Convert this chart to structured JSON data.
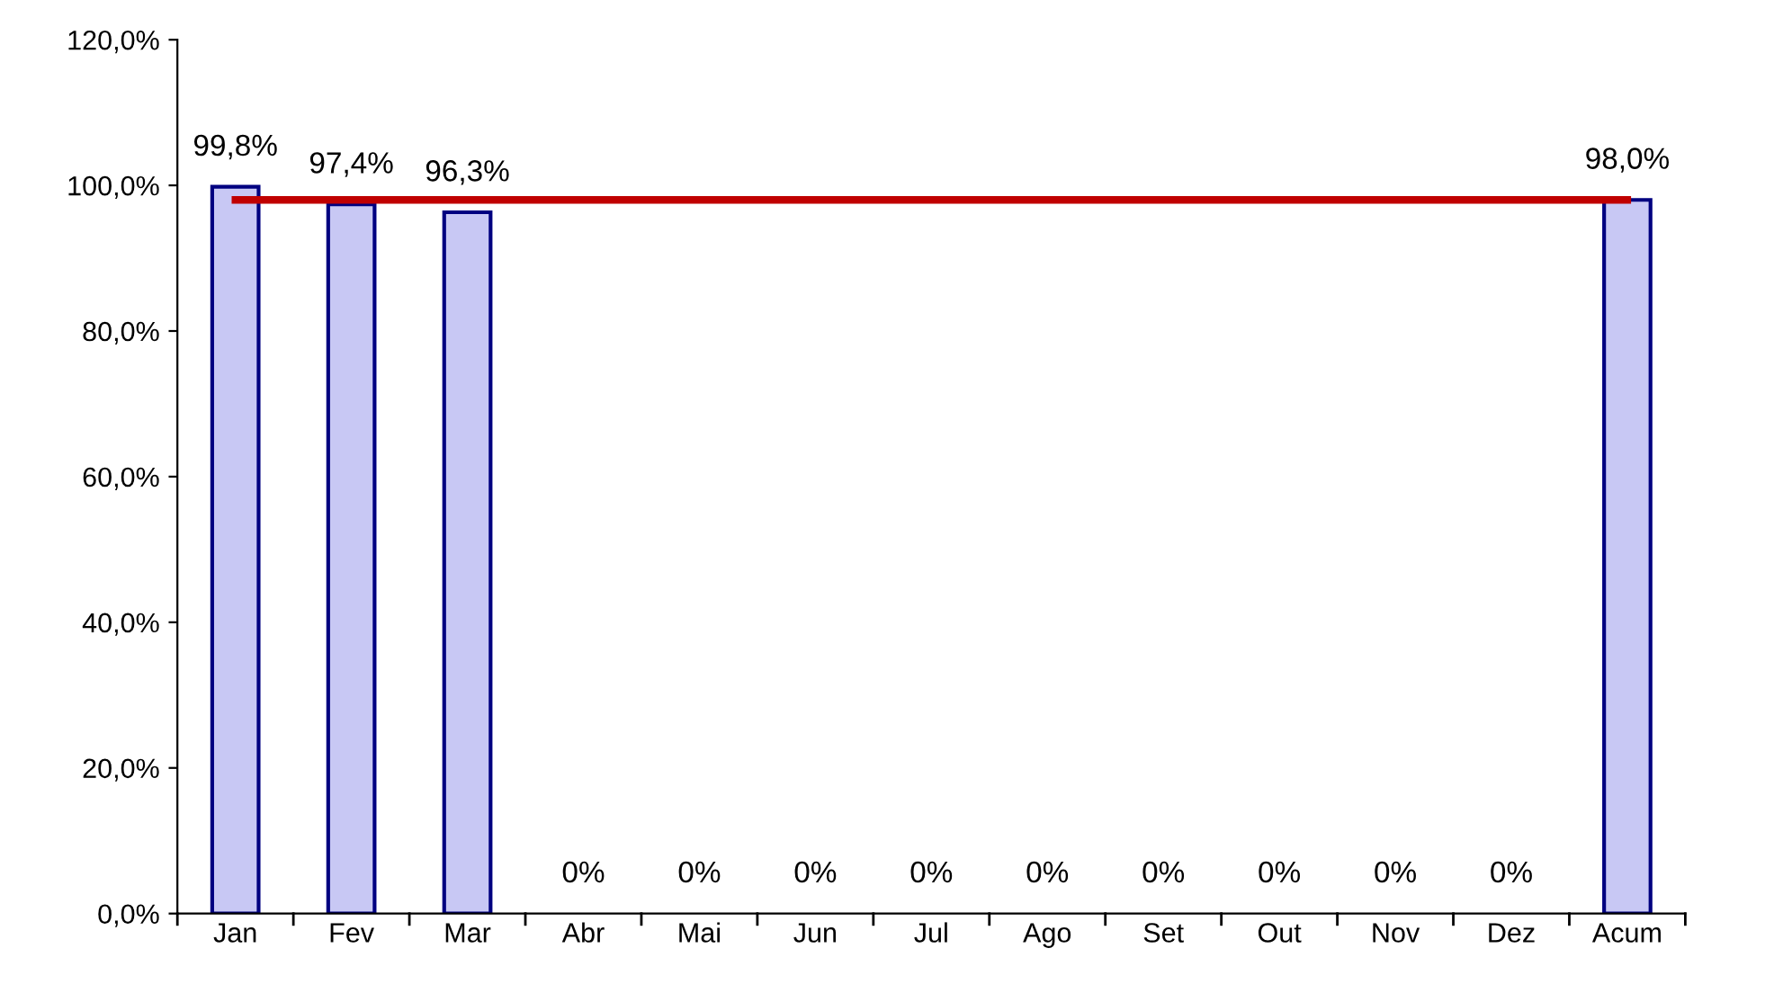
{
  "chart_data": {
    "type": "bar",
    "categories": [
      "Jan",
      "Fev",
      "Mar",
      "Abr",
      "Mai",
      "Jun",
      "Jul",
      "Ago",
      "Set",
      "Out",
      "Nov",
      "Dez",
      "Acum"
    ],
    "values": [
      99.8,
      97.4,
      96.3,
      0,
      0,
      0,
      0,
      0,
      0,
      0,
      0,
      0,
      98.0
    ],
    "value_labels": [
      "99,8%",
      "97,4%",
      "96,3%",
      "0%",
      "0%",
      "0%",
      "0%",
      "0%",
      "0%",
      "0%",
      "0%",
      "0%",
      "98,0%"
    ],
    "color": "#c8c8f4",
    "ylim": [
      0,
      120
    ],
    "yticks": [
      {
        "value": 0,
        "label": "0,0%"
      },
      {
        "value": 20,
        "label": "20,0%"
      },
      {
        "value": 40,
        "label": "40,0%"
      },
      {
        "value": 60,
        "label": "60,0%"
      },
      {
        "value": 80,
        "label": "80,0%"
      },
      {
        "value": 100,
        "label": "100,0%"
      },
      {
        "value": 120,
        "label": "120,0%"
      }
    ],
    "ref_lines": [
      {
        "axis": "y",
        "value": 98.0,
        "color": "#c00000"
      }
    ],
    "grid": false,
    "legend": false
  }
}
